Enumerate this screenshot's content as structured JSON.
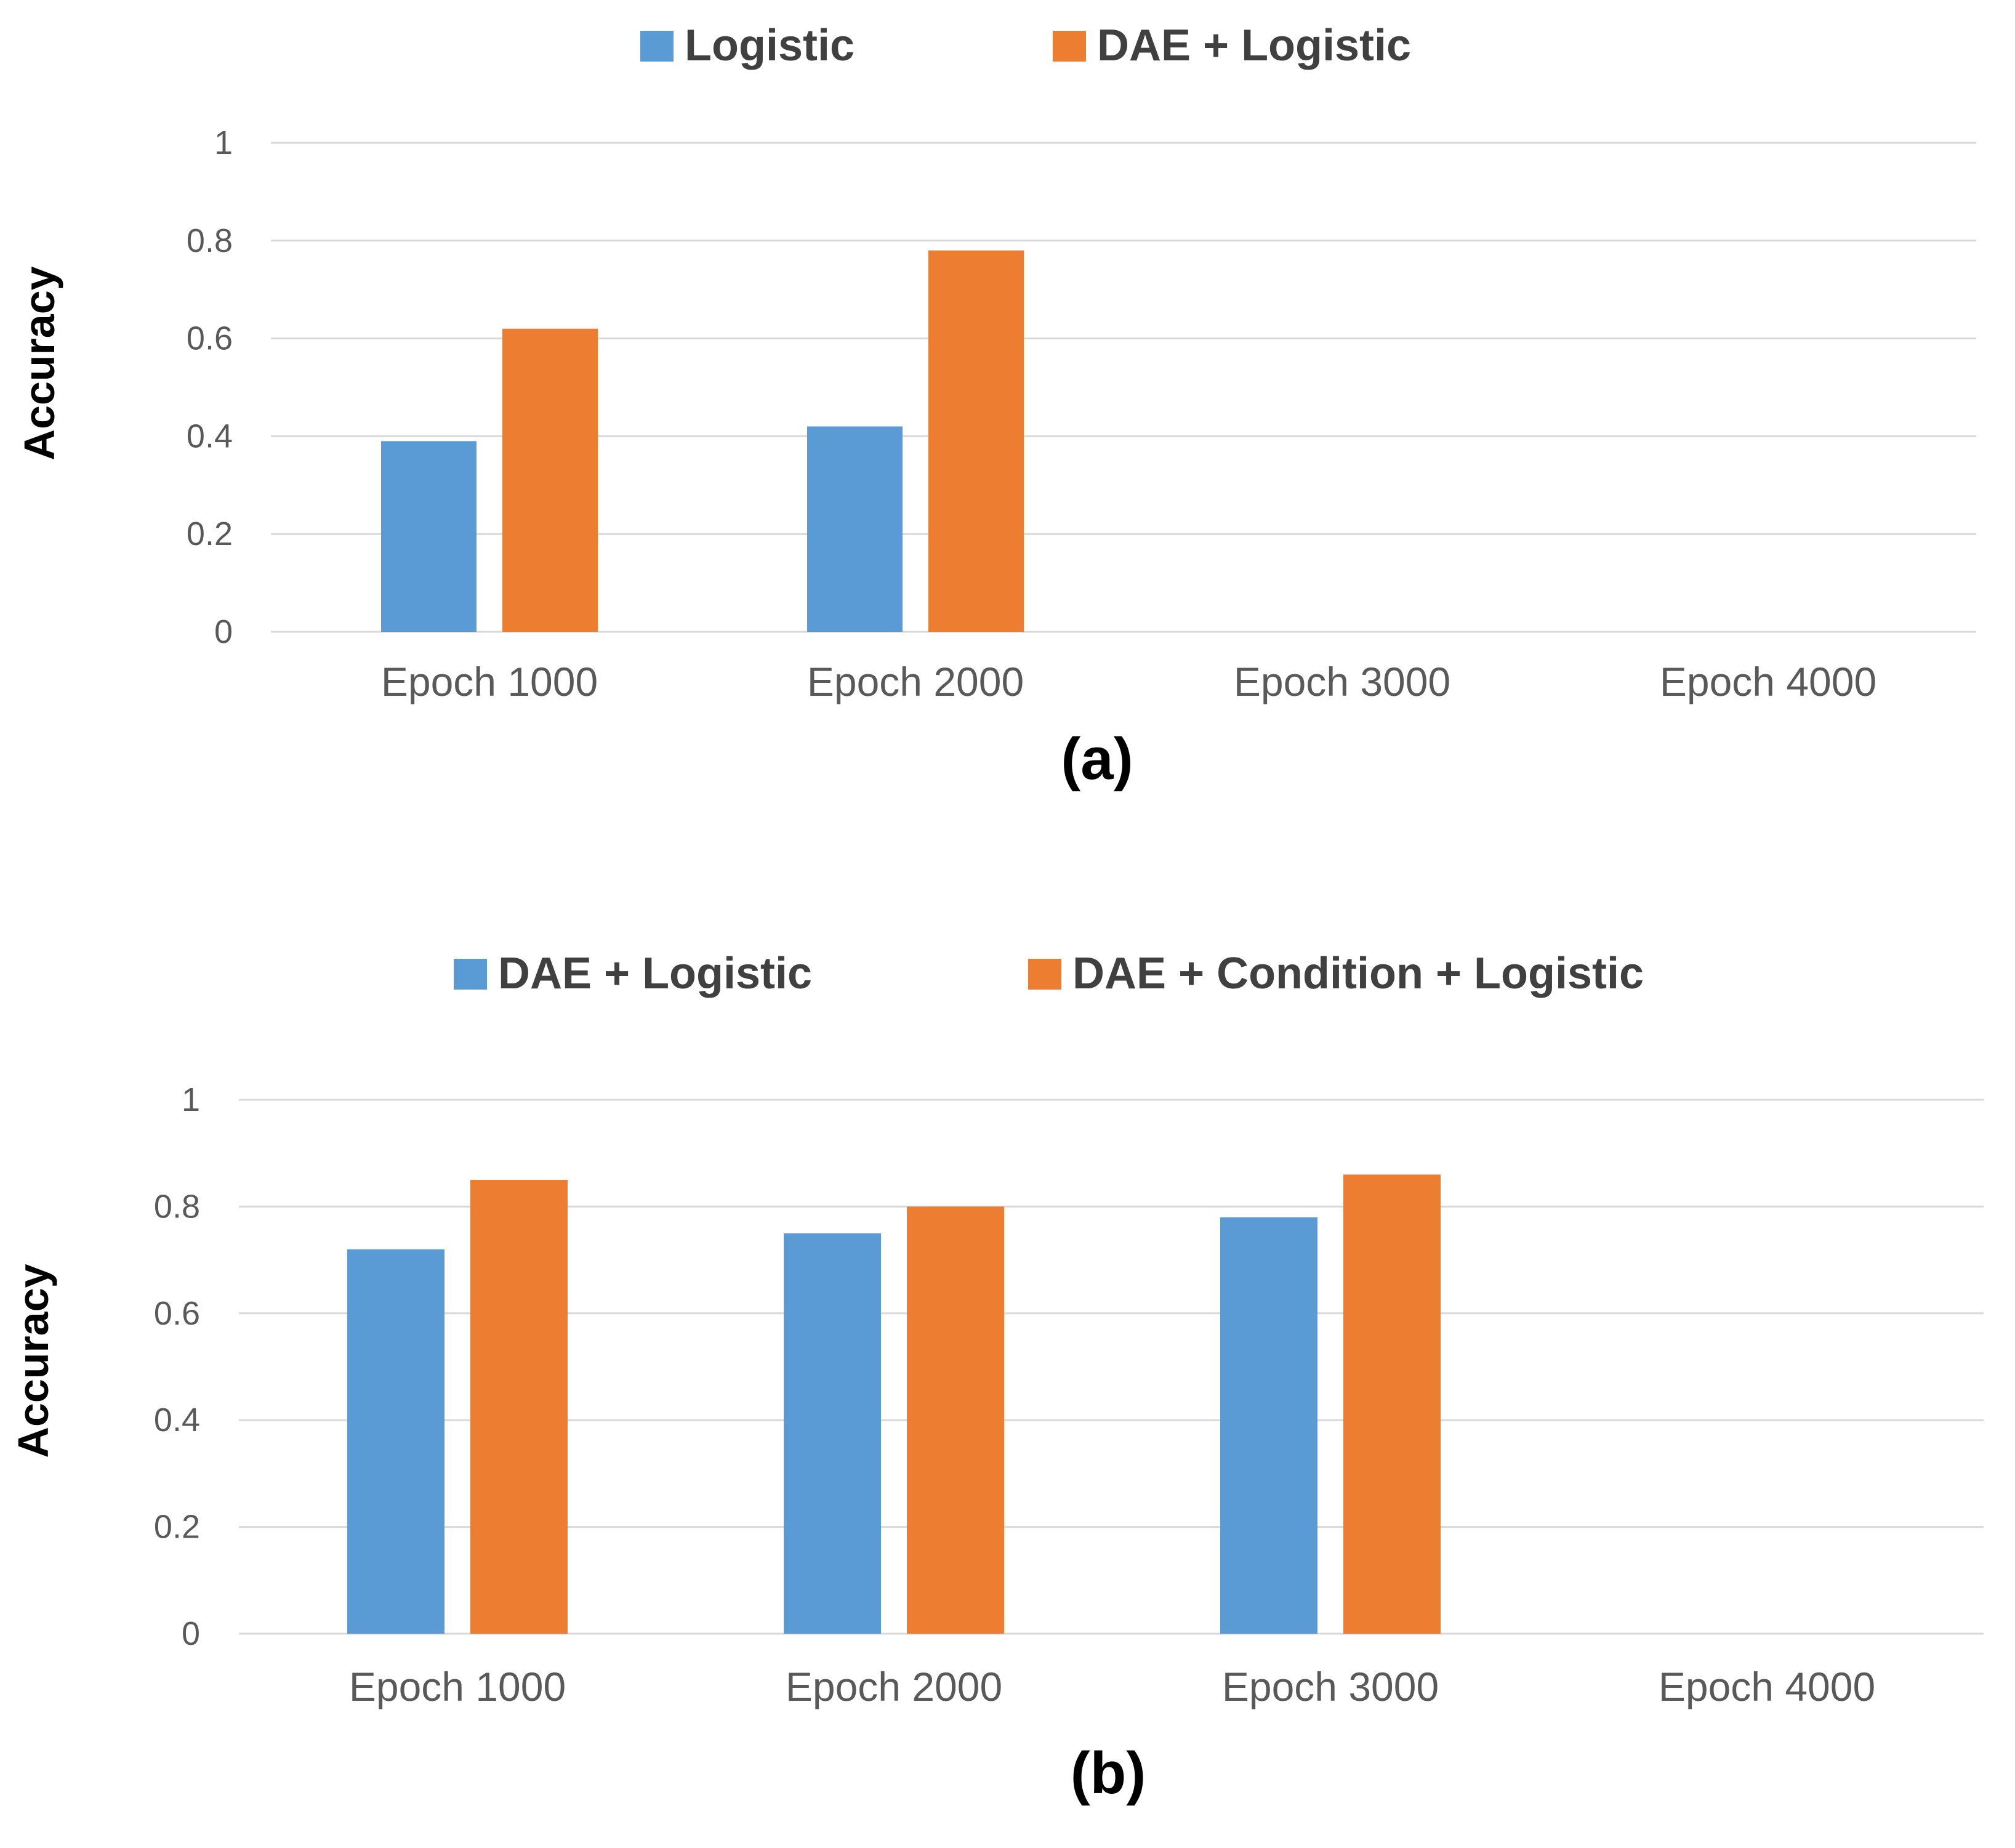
{
  "chart_data": [
    {
      "panel_label": "(a)",
      "type": "bar",
      "title": "",
      "xlabel": "",
      "ylabel": "Accuracy",
      "ylim": [
        0,
        1
      ],
      "yticks": [
        "0",
        "0.2",
        "0.4",
        "0.6",
        "0.8",
        "1"
      ],
      "ytick_values": [
        0,
        0.2,
        0.4,
        0.6,
        0.8,
        1
      ],
      "grid": true,
      "legend_position": "top-center",
      "categories": [
        "Epoch 1000",
        "Epoch 2000",
        "Epoch 3000",
        "Epoch 4000"
      ],
      "series": [
        {
          "name": "Logistic",
          "color": "#5B9BD5",
          "values": [
            0.39,
            0.42,
            null,
            null
          ]
        },
        {
          "name": "DAE + Logistic",
          "color": "#ED7D31",
          "values": [
            0.62,
            0.78,
            null,
            null
          ]
        }
      ]
    },
    {
      "panel_label": "(b)",
      "type": "bar",
      "title": "",
      "xlabel": "",
      "ylabel": "Accuracy",
      "ylim": [
        0,
        1
      ],
      "yticks": [
        "0",
        "0.2",
        "0.4",
        "0.6",
        "0.8",
        "1"
      ],
      "ytick_values": [
        0,
        0.2,
        0.4,
        0.6,
        0.8,
        1
      ],
      "grid": true,
      "legend_position": "top-center",
      "categories": [
        "Epoch 1000",
        "Epoch 2000",
        "Epoch 3000",
        "Epoch 4000"
      ],
      "series": [
        {
          "name": "DAE + Logistic",
          "color": "#5B9BD5",
          "values": [
            0.72,
            0.75,
            0.78,
            null
          ]
        },
        {
          "name": "DAE + Condition + Logistic",
          "color": "#ED7D31",
          "values": [
            0.85,
            0.8,
            0.86,
            null
          ]
        }
      ]
    }
  ],
  "style": {
    "grid_color": "#D9D9D9",
    "tick_color": "#595959",
    "label_color": "#000000",
    "legend_text_color": "#404040"
  }
}
